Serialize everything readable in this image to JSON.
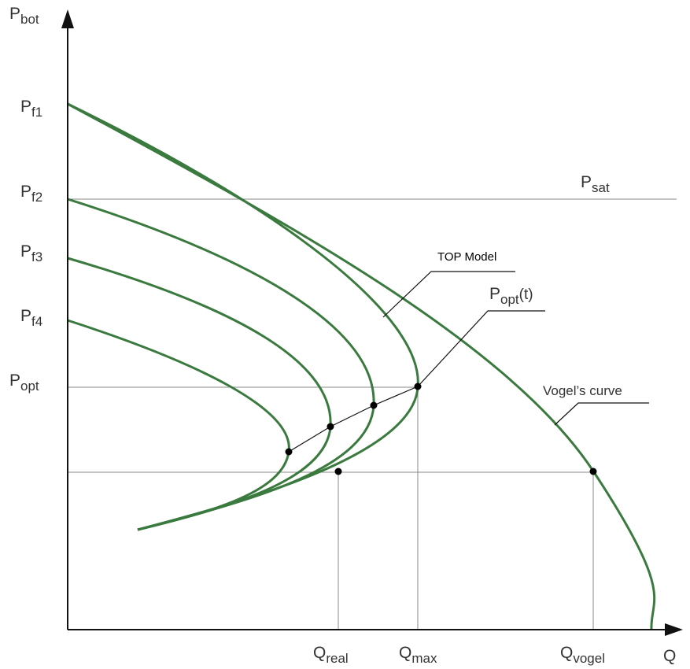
{
  "axes": {
    "y_label": {
      "base": "P",
      "sub": "bot"
    },
    "x_label": "Q"
  },
  "y_labels": [
    {
      "base": "P",
      "sub": "f1"
    },
    {
      "base": "P",
      "sub": "f2"
    },
    {
      "base": "P",
      "sub": "f3"
    },
    {
      "base": "P",
      "sub": "f4"
    },
    {
      "base": "P",
      "sub": "opt"
    }
  ],
  "x_labels": [
    {
      "base": "Q",
      "sub": "real"
    },
    {
      "base": "Q",
      "sub": "max"
    },
    {
      "base": "Q",
      "sub": "vogel"
    }
  ],
  "annotations": {
    "p_sat": {
      "base": "P",
      "sub": "sat"
    },
    "top_model": "TOP Model",
    "p_opt_t": {
      "base": "P",
      "sub": "opt",
      "suffix": "(t)"
    },
    "vogel": "Vogel’s curve"
  }
}
